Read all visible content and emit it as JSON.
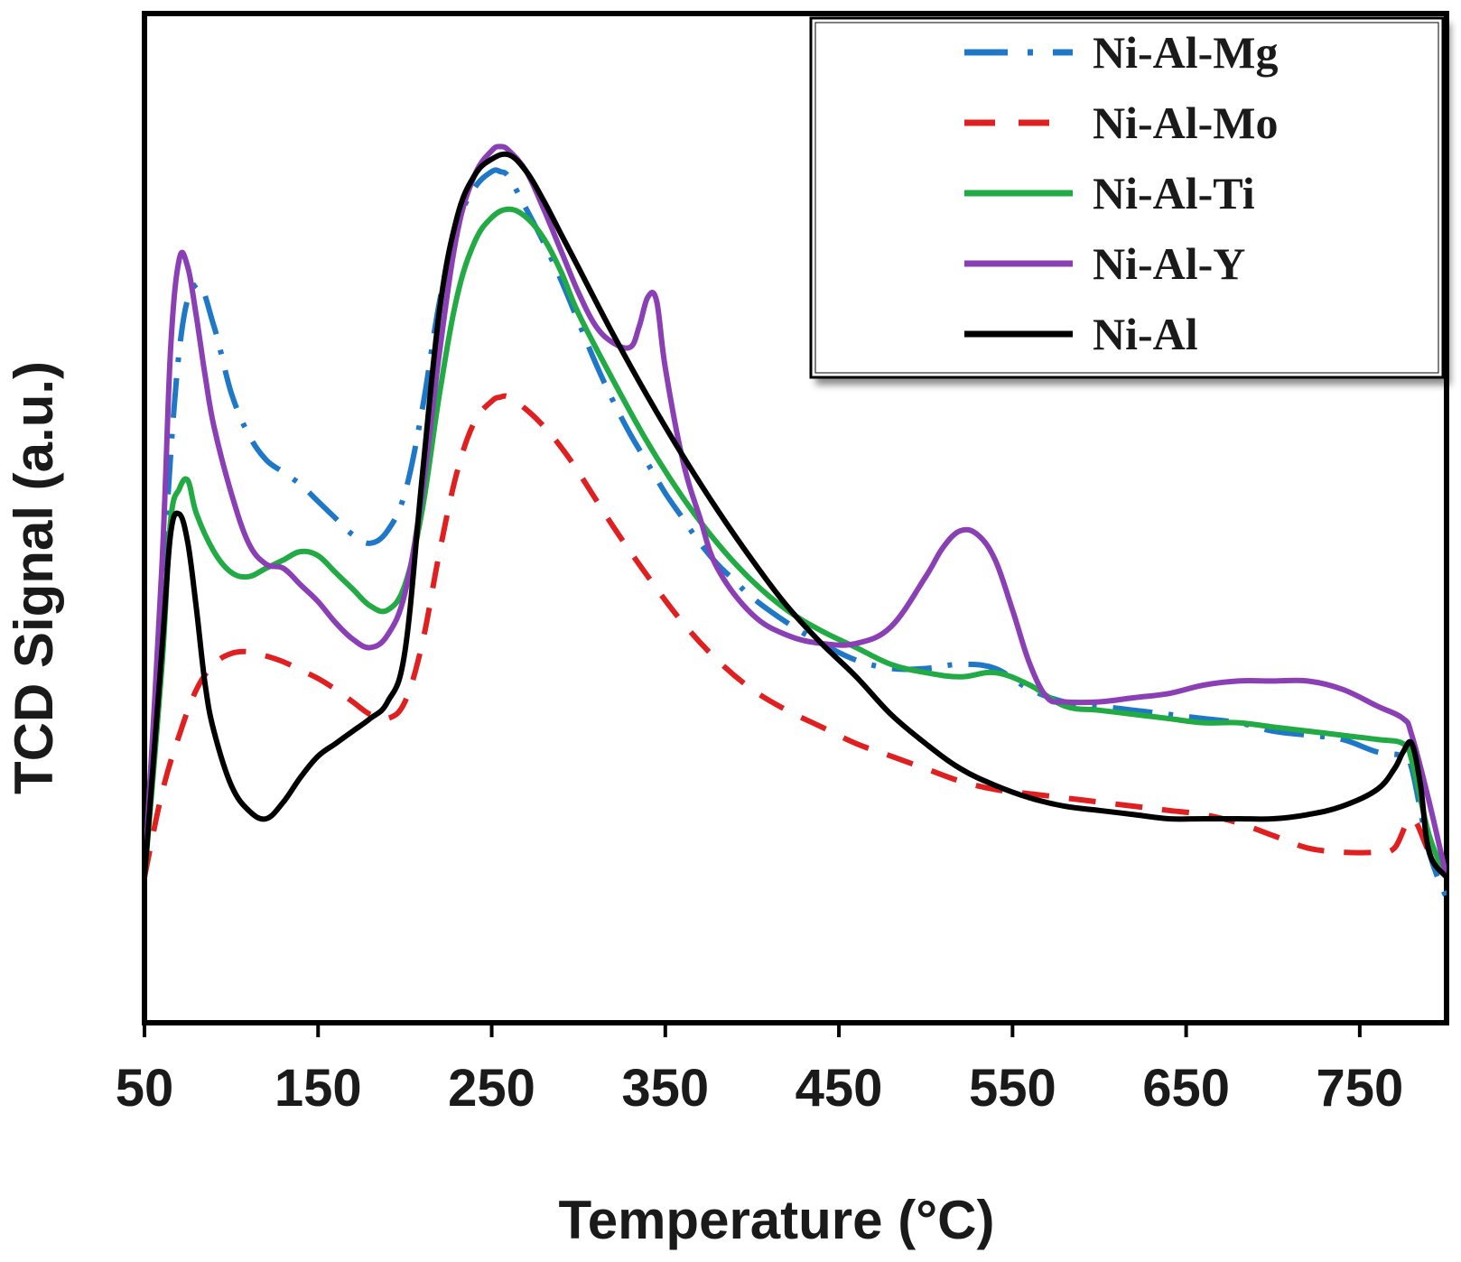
{
  "chart_data": {
    "type": "line",
    "title": "",
    "xlabel": "Temperature (°C)",
    "ylabel": "TCD Signal (a.u.)",
    "xlim": [
      50,
      800
    ],
    "ylim": [
      0,
      100
    ],
    "xticks": [
      50,
      150,
      250,
      350,
      450,
      550,
      650,
      750
    ],
    "xtick_labels": [
      "50",
      "150",
      "250",
      "350",
      "450",
      "550",
      "650",
      "750"
    ],
    "y_ticks_shown": false,
    "legend_position": "top-right",
    "series": [
      {
        "name": "Ni-Al-Mg",
        "color": "#1f77c8",
        "dash": "dashdot",
        "x": [
          50,
          60,
          70,
          80,
          90,
          100,
          110,
          120,
          130,
          140,
          150,
          160,
          170,
          180,
          190,
          200,
          210,
          220,
          230,
          240,
          250,
          255,
          260,
          270,
          280,
          290,
          300,
          310,
          320,
          330,
          340,
          350,
          360,
          370,
          380,
          390,
          400,
          420,
          440,
          460,
          480,
          500,
          520,
          540,
          560,
          580,
          600,
          620,
          640,
          660,
          680,
          700,
          720,
          740,
          760,
          775,
          780,
          790,
          800
        ],
        "y": [
          9,
          43,
          72,
          80,
          75,
          67,
          62,
          59,
          57.5,
          56,
          54,
          52,
          50,
          49,
          50.5,
          55,
          65,
          78,
          87,
          91.5,
          93.5,
          93.5,
          92.8,
          89,
          85,
          80.5,
          75.5,
          70.5,
          66,
          62,
          58.5,
          55,
          52,
          49,
          46.5,
          44.5,
          42.5,
          39.5,
          37,
          35,
          34,
          34,
          34.5,
          34,
          31.5,
          30,
          29.5,
          29,
          28.5,
          28,
          27.5,
          26.5,
          26,
          25.5,
          24,
          23.5,
          22,
          12,
          6.5
        ]
      },
      {
        "name": "Ni-Al-Mo",
        "color": "#e02020",
        "dash": "dashed",
        "x": [
          50,
          60,
          70,
          80,
          90,
          100,
          110,
          120,
          130,
          140,
          150,
          160,
          170,
          180,
          190,
          200,
          210,
          220,
          230,
          240,
          250,
          255,
          260,
          270,
          280,
          290,
          300,
          320,
          340,
          360,
          380,
          400,
          420,
          440,
          460,
          480,
          500,
          520,
          540,
          560,
          580,
          600,
          620,
          640,
          660,
          680,
          700,
          720,
          740,
          760,
          770,
          780,
          790,
          800
        ],
        "y": [
          9,
          19,
          26,
          31.5,
          34.5,
          35.8,
          36,
          35.5,
          34.8,
          33.8,
          32.8,
          31.5,
          30,
          28.5,
          28,
          30,
          37,
          48,
          57.5,
          63.5,
          66,
          66.5,
          66.5,
          65,
          63,
          60.5,
          57.5,
          51,
          45,
          39.5,
          35,
          31.5,
          29,
          27,
          25,
          23.5,
          22,
          20.5,
          19.5,
          19,
          18.5,
          18,
          17.5,
          17,
          16.5,
          15.5,
          14,
          12.5,
          12,
          12,
          12.5,
          16,
          12,
          9
        ]
      },
      {
        "name": "Ni-Al-Ti",
        "color": "#22aa44",
        "dash": "solid",
        "x": [
          50,
          60,
          65,
          70,
          75,
          80,
          90,
          100,
          110,
          120,
          130,
          140,
          150,
          160,
          170,
          180,
          190,
          200,
          210,
          220,
          230,
          240,
          250,
          260,
          270,
          280,
          290,
          300,
          320,
          340,
          360,
          380,
          400,
          420,
          440,
          460,
          480,
          500,
          520,
          540,
          560,
          580,
          600,
          620,
          640,
          660,
          680,
          700,
          720,
          740,
          760,
          775,
          780,
          790,
          800
        ],
        "y": [
          9,
          34,
          51.5,
          55.5,
          56.5,
          52.5,
          48,
          45.5,
          45,
          46,
          47,
          48,
          47.5,
          45.5,
          43.5,
          41.5,
          41,
          44,
          53,
          67,
          78.5,
          85,
          88,
          89,
          88,
          85.5,
          81.5,
          76.5,
          68.5,
          61,
          54.5,
          49,
          44.5,
          41,
          38.5,
          36.5,
          34.5,
          33.5,
          33,
          33.5,
          32,
          29.5,
          29,
          28.5,
          28,
          27.5,
          27.5,
          27,
          26.5,
          26,
          25.5,
          25,
          23,
          14,
          9
        ]
      },
      {
        "name": "Ni-Al-Y",
        "color": "#8a3fb5",
        "dash": "solid",
        "x": [
          50,
          60,
          65,
          70,
          75,
          80,
          85,
          90,
          100,
          110,
          120,
          130,
          140,
          150,
          160,
          170,
          180,
          190,
          200,
          210,
          220,
          230,
          240,
          250,
          255,
          260,
          270,
          280,
          290,
          300,
          310,
          320,
          330,
          335,
          340,
          345,
          350,
          360,
          370,
          380,
          400,
          420,
          440,
          460,
          480,
          500,
          510,
          520,
          530,
          540,
          550,
          560,
          570,
          580,
          600,
          620,
          640,
          660,
          680,
          700,
          720,
          740,
          760,
          775,
          780,
          790,
          800
        ],
        "y": [
          9,
          46,
          72,
          83,
          82,
          76,
          69,
          63,
          55,
          49,
          46.5,
          46,
          44,
          42,
          39.5,
          37.5,
          36.5,
          38,
          43,
          55,
          72,
          86,
          93,
          96,
          96.5,
          96,
          93.5,
          89,
          84,
          79,
          75,
          73,
          72.5,
          75,
          78.5,
          78,
          70,
          59,
          52,
          46,
          40.5,
          38,
          37,
          37,
          39,
          45,
          48.5,
          50.5,
          50,
          47,
          41,
          34.5,
          30.5,
          30,
          30,
          30.5,
          31,
          32,
          32.5,
          32.5,
          32.5,
          31.5,
          29.5,
          28,
          26,
          18,
          9
        ]
      },
      {
        "name": "Ni-Al",
        "color": "#000000",
        "dash": "solid",
        "x": [
          50,
          60,
          65,
          70,
          75,
          80,
          85,
          90,
          100,
          110,
          120,
          130,
          140,
          150,
          160,
          170,
          180,
          190,
          200,
          210,
          220,
          230,
          240,
          250,
          260,
          270,
          280,
          290,
          300,
          320,
          340,
          360,
          380,
          400,
          420,
          440,
          460,
          480,
          500,
          520,
          540,
          560,
          580,
          600,
          620,
          640,
          660,
          680,
          700,
          720,
          740,
          760,
          770,
          775,
          780,
          785,
          790,
          800
        ],
        "y": [
          9,
          36,
          50,
          52.5,
          49,
          41,
          32,
          26.5,
          20,
          17,
          16,
          18,
          21,
          23.5,
          25,
          26.5,
          28,
          30,
          36,
          57,
          77,
          88,
          93,
          95,
          95.5,
          93.5,
          90,
          86,
          82,
          74,
          66.5,
          59.5,
          53,
          47,
          41.5,
          37,
          33,
          28.5,
          25,
          22,
          20,
          18.5,
          17.5,
          17,
          16.5,
          16,
          16,
          16,
          16,
          16.5,
          17.5,
          19.5,
          22,
          24,
          25,
          20,
          12,
          9
        ]
      }
    ]
  }
}
